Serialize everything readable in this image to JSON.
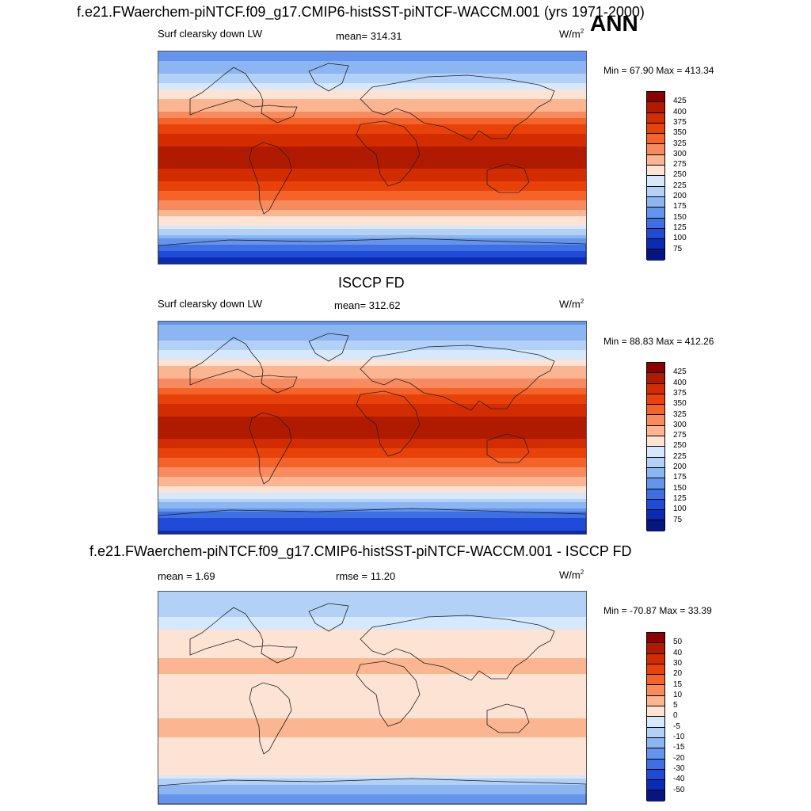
{
  "header": {
    "title": "f.e21.FWaerchem-piNTCF.f09_g17.CMIP6-histSST-piNTCF-WACCM.001 (yrs 1971-2000)",
    "season": "ANN"
  },
  "panels": [
    {
      "heading": "",
      "left_label": "Surf clearsky down LW",
      "center_label": "mean= 314.31",
      "units": "W/m",
      "units_sup": "2",
      "minmax": "Min =  67.90 Max = 413.34"
    },
    {
      "heading": "ISCCP FD",
      "left_label": "Surf clearsky down LW",
      "center_label": "mean= 312.62",
      "units": "W/m",
      "units_sup": "2",
      "minmax": "Min =  88.83 Max = 412.26"
    },
    {
      "heading": "f.e21.FWaerchem-piNTCF.f09_g17.CMIP6-histSST-piNTCF-WACCM.001 - ISCCP FD",
      "left_label": "mean =   1.69",
      "center_label": "rmse =  11.20",
      "units": "W/m",
      "units_sup": "2",
      "minmax": "Min = -70.87 Max =  33.39"
    }
  ],
  "chart_data": [
    {
      "type": "heatmap",
      "title": "Surf clearsky down LW",
      "mean": 314.31,
      "min": 67.9,
      "max": 413.34,
      "units": "W/m2",
      "colorbar_levels": [
        425,
        400,
        375,
        350,
        325,
        300,
        275,
        250,
        225,
        200,
        175,
        150,
        125,
        100,
        75
      ],
      "colorbar_colors": [
        "#8b0000",
        "#b01a00",
        "#d22c00",
        "#e8420a",
        "#f4632a",
        "#f78a5e",
        "#fbb591",
        "#fde3d3",
        "#d6e8fb",
        "#b3d1f6",
        "#8cb6f1",
        "#6494ec",
        "#3e6fe5",
        "#1f4bd8",
        "#0c2bb4",
        "#06157f"
      ],
      "zonal_profile": [
        {
          "lat": 90,
          "value": 160
        },
        {
          "lat": 70,
          "value": 200
        },
        {
          "lat": 55,
          "value": 260
        },
        {
          "lat": 40,
          "value": 300
        },
        {
          "lat": 25,
          "value": 360
        },
        {
          "lat": 10,
          "value": 400
        },
        {
          "lat": 0,
          "value": 410
        },
        {
          "lat": -10,
          "value": 400
        },
        {
          "lat": -25,
          "value": 360
        },
        {
          "lat": -40,
          "value": 310
        },
        {
          "lat": -55,
          "value": 260
        },
        {
          "lat": -65,
          "value": 200
        },
        {
          "lat": -75,
          "value": 140
        },
        {
          "lat": -90,
          "value": 80
        }
      ]
    },
    {
      "type": "heatmap",
      "title": "Surf clearsky down LW",
      "mean": 312.62,
      "min": 88.83,
      "max": 412.26,
      "units": "W/m2",
      "colorbar_levels": [
        425,
        400,
        375,
        350,
        325,
        300,
        275,
        250,
        225,
        200,
        175,
        150,
        125,
        100,
        75
      ],
      "colorbar_colors": [
        "#8b0000",
        "#b01a00",
        "#d22c00",
        "#e8420a",
        "#f4632a",
        "#f78a5e",
        "#fbb591",
        "#fde3d3",
        "#d6e8fb",
        "#b3d1f6",
        "#8cb6f1",
        "#6494ec",
        "#3e6fe5",
        "#1f4bd8",
        "#0c2bb4",
        "#06157f"
      ],
      "zonal_profile": [
        {
          "lat": 90,
          "value": 170
        },
        {
          "lat": 70,
          "value": 210
        },
        {
          "lat": 55,
          "value": 265
        },
        {
          "lat": 40,
          "value": 305
        },
        {
          "lat": 25,
          "value": 360
        },
        {
          "lat": 10,
          "value": 400
        },
        {
          "lat": 0,
          "value": 408
        },
        {
          "lat": -10,
          "value": 400
        },
        {
          "lat": -25,
          "value": 355
        },
        {
          "lat": -40,
          "value": 305
        },
        {
          "lat": -55,
          "value": 255
        },
        {
          "lat": -65,
          "value": 190
        },
        {
          "lat": -75,
          "value": 130
        },
        {
          "lat": -90,
          "value": 95
        }
      ]
    },
    {
      "type": "heatmap",
      "title": "f.e21.FWaerchem-piNTCF.f09_g17.CMIP6-histSST-piNTCF-WACCM.001 - ISCCP FD",
      "mean": 1.69,
      "rmse": 11.2,
      "min": -70.87,
      "max": 33.39,
      "units": "W/m2",
      "colorbar_levels": [
        50,
        40,
        30,
        20,
        15,
        10,
        5,
        0,
        -5,
        -10,
        -15,
        -20,
        -30,
        -40,
        -50
      ],
      "colorbar_colors": [
        "#8b0000",
        "#b01a00",
        "#d22c00",
        "#e8420a",
        "#f4632a",
        "#f78a5e",
        "#fbb591",
        "#fde3d3",
        "#d6e8fb",
        "#b3d1f6",
        "#8cb6f1",
        "#6494ec",
        "#3e6fe5",
        "#1f4bd8",
        "#0c2bb4",
        "#06157f"
      ],
      "zonal_profile": [
        {
          "lat": 90,
          "value": -8
        },
        {
          "lat": 70,
          "value": -6
        },
        {
          "lat": 55,
          "value": 2
        },
        {
          "lat": 40,
          "value": 4
        },
        {
          "lat": 25,
          "value": 6
        },
        {
          "lat": 10,
          "value": 3
        },
        {
          "lat": 0,
          "value": 2
        },
        {
          "lat": -10,
          "value": 4
        },
        {
          "lat": -25,
          "value": 6
        },
        {
          "lat": -40,
          "value": 4
        },
        {
          "lat": -55,
          "value": 3
        },
        {
          "lat": -65,
          "value": 0
        },
        {
          "lat": -75,
          "value": -12
        },
        {
          "lat": -90,
          "value": -20
        }
      ]
    }
  ]
}
